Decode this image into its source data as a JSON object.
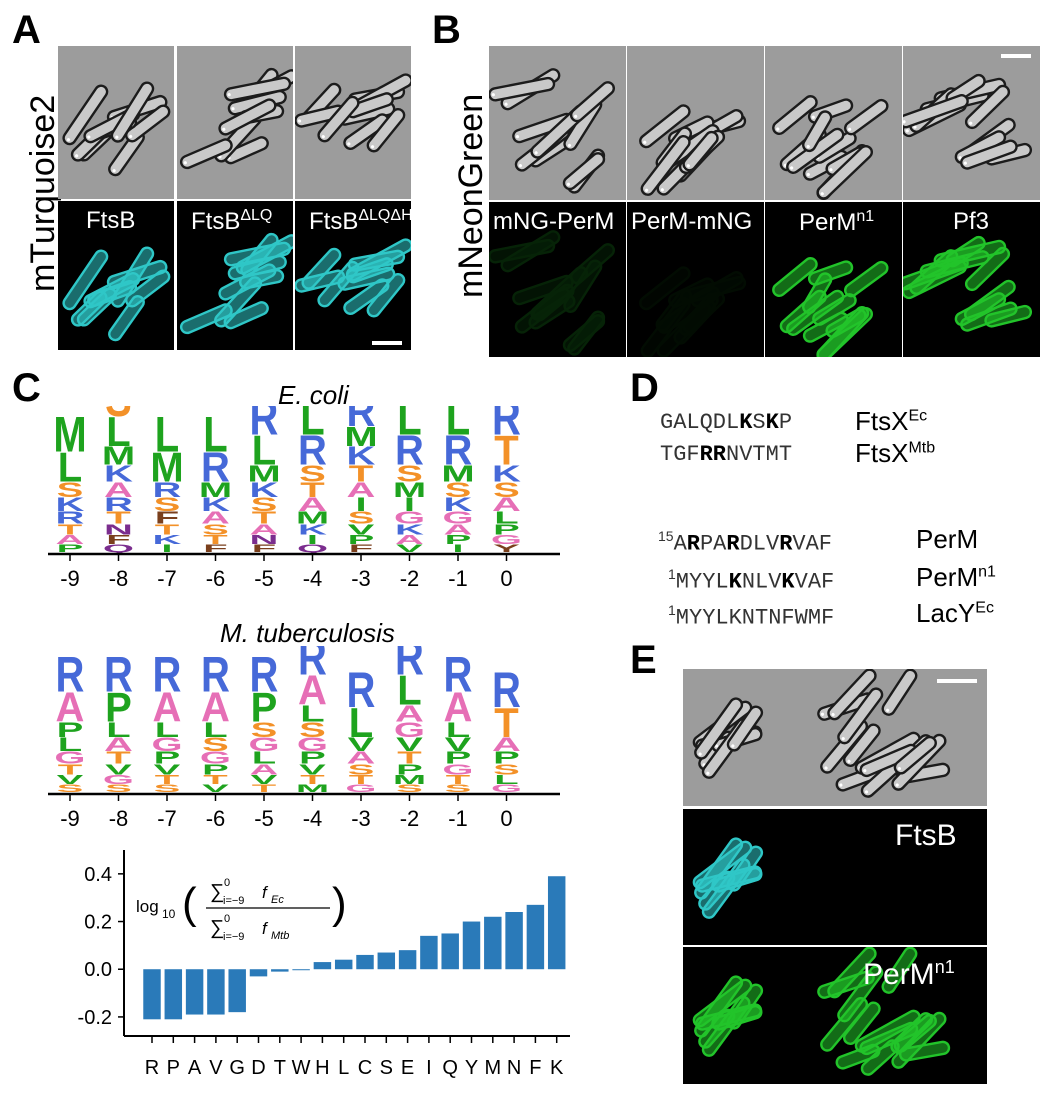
{
  "panels": {
    "a": "A",
    "b": "B",
    "c": "C",
    "d": "D",
    "e": "E"
  },
  "panel_a": {
    "side_label": "mTurquoise2",
    "fluor_color": "#2fc7c7",
    "columns": [
      {
        "label": "FtsB",
        "sup": ""
      },
      {
        "label": "FtsB",
        "sup": "ΔLQ"
      },
      {
        "label": "FtsB",
        "sup": "ΔLQΔH"
      }
    ]
  },
  "panel_b": {
    "side_label": "mNeonGreen",
    "fluor_color": "#22c42a",
    "columns": [
      {
        "label": "mNG-PerM",
        "sup": "",
        "brightness": "dim"
      },
      {
        "label": "PerM-mNG",
        "sup": "",
        "brightness": "dark"
      },
      {
        "label": "PerM",
        "sup": "n1",
        "brightness": "bright"
      },
      {
        "label": "Pf3",
        "sup": "",
        "brightness": "bright"
      }
    ]
  },
  "panel_c": {
    "logo_colors": {
      "hydrophobic": "#1ea31e",
      "basic": "#4669d8",
      "polar": "#e66fb6",
      "small": "#f39128",
      "acidic": "#c0392b",
      "amide": "#7b2d8e",
      "aromatic": "#7a3f1c"
    },
    "ecoli": {
      "species": "E. coli",
      "positions": [
        "-9",
        "-8",
        "-7",
        "-6",
        "-5",
        "-4",
        "-3",
        "-2",
        "-1",
        "0"
      ],
      "stacks": [
        [
          "P",
          "A",
          "T",
          "R",
          "K",
          "S",
          "L",
          "M"
        ],
        [
          "Q",
          "F",
          "N",
          "T",
          "R",
          "A",
          "K",
          "M",
          "L",
          "S"
        ],
        [
          "I",
          "K",
          "T",
          "F",
          "S",
          "R",
          "M",
          "L"
        ],
        [
          "F",
          "T",
          "S",
          "A",
          "K",
          "M",
          "R",
          "L"
        ],
        [
          "F",
          "N",
          "A",
          "T",
          "S",
          "K",
          "M",
          "L",
          "R"
        ],
        [
          "Q",
          "I",
          "K",
          "M",
          "A",
          "T",
          "S",
          "R",
          "L"
        ],
        [
          "F",
          "P",
          "V",
          "S",
          "I",
          "A",
          "T",
          "K",
          "M",
          "R",
          "L"
        ],
        [
          "V",
          "A",
          "K",
          "G",
          "I",
          "M",
          "S",
          "R",
          "L"
        ],
        [
          "I",
          "P",
          "A",
          "G",
          "K",
          "S",
          "M",
          "R",
          "L"
        ],
        [
          "Y",
          "G",
          "P",
          "L",
          "A",
          "S",
          "K",
          "T",
          "R"
        ]
      ]
    },
    "mtb": {
      "species": "M. tuberculosis",
      "positions": [
        "-9",
        "-8",
        "-7",
        "-6",
        "-5",
        "-4",
        "-3",
        "-2",
        "-1",
        "0"
      ],
      "stacks": [
        [
          "S",
          "V",
          "T",
          "G",
          "L",
          "P",
          "A",
          "R"
        ],
        [
          "S",
          "G",
          "V",
          "T",
          "A",
          "L",
          "P",
          "R"
        ],
        [
          "S",
          "T",
          "V",
          "P",
          "G",
          "L",
          "A",
          "R"
        ],
        [
          "V",
          "T",
          "P",
          "G",
          "S",
          "L",
          "A",
          "R"
        ],
        [
          "T",
          "V",
          "A",
          "L",
          "G",
          "S",
          "P",
          "R"
        ],
        [
          "M",
          "T",
          "V",
          "P",
          "G",
          "S",
          "L",
          "A",
          "R"
        ],
        [
          "G",
          "T",
          "S",
          "A",
          "V",
          "L",
          "R"
        ],
        [
          "S",
          "M",
          "P",
          "T",
          "V",
          "G",
          "A",
          "L",
          "R"
        ],
        [
          "S",
          "T",
          "G",
          "P",
          "V",
          "L",
          "A",
          "R"
        ],
        [
          "G",
          "L",
          "S",
          "P",
          "A",
          "T",
          "R"
        ]
      ]
    }
  },
  "chart_data": {
    "type": "bar",
    "categories": [
      "R",
      "P",
      "A",
      "V",
      "G",
      "D",
      "T",
      "W",
      "H",
      "L",
      "C",
      "S",
      "E",
      "I",
      "Q",
      "Y",
      "M",
      "N",
      "F",
      "K"
    ],
    "values": [
      -0.21,
      -0.21,
      -0.19,
      -0.19,
      -0.18,
      -0.03,
      -0.01,
      0.0,
      0.03,
      0.04,
      0.06,
      0.07,
      0.08,
      0.14,
      0.15,
      0.2,
      0.22,
      0.24,
      0.27,
      0.39
    ],
    "ylim": [
      -0.28,
      0.5
    ],
    "yticks": [
      "-0.2",
      "0.0",
      "0.2",
      "0.4"
    ],
    "ytick_values": [
      -0.2,
      0.0,
      0.2,
      0.4
    ],
    "bar_color": "#2a7ab9",
    "formula": {
      "log": "log",
      "log_sub": "10",
      "sum_num": "∑",
      "sum_sup": "0",
      "sum_sub": "i=−9",
      "num_f": "f",
      "num_f_sub": "Ec",
      "den_f": "f",
      "den_f_sub": "Mtb"
    }
  },
  "panel_d": {
    "rows": [
      {
        "prefix": "",
        "parts": [
          [
            "GALQDL",
            false
          ],
          [
            "K",
            true
          ],
          [
            "S",
            false
          ],
          [
            "K",
            true
          ],
          [
            "P",
            false
          ]
        ],
        "name": "FtsX",
        "sup": "Ec"
      },
      {
        "prefix": "",
        "parts": [
          [
            "TGF",
            false
          ],
          [
            "RR",
            true
          ],
          [
            "NVTMT",
            false
          ]
        ],
        "name": "FtsX",
        "sup": "Mtb"
      },
      {
        "prefix": "15",
        "parts": [
          [
            "A",
            false
          ],
          [
            "R",
            true
          ],
          [
            "PA",
            false
          ],
          [
            "R",
            true
          ],
          [
            "DLV",
            false
          ],
          [
            "R",
            true
          ],
          [
            "VAF",
            false
          ]
        ],
        "name": "PerM",
        "sup": ""
      },
      {
        "prefix": "1",
        "parts": [
          [
            "MYYL",
            false
          ],
          [
            "K",
            true
          ],
          [
            "NLV",
            false
          ],
          [
            "K",
            true
          ],
          [
            "VAF",
            false
          ]
        ],
        "name": "PerM",
        "sup": "n1"
      },
      {
        "prefix": "1",
        "parts": [
          [
            "MYYLKNTNFWMF",
            false
          ]
        ],
        "name": "LacY",
        "sup": "Ec"
      }
    ]
  },
  "panel_e": {
    "rows": [
      {
        "label": "",
        "sup": ""
      },
      {
        "label": "FtsB",
        "sup": ""
      },
      {
        "label": "PerM",
        "sup": "n1"
      }
    ]
  }
}
